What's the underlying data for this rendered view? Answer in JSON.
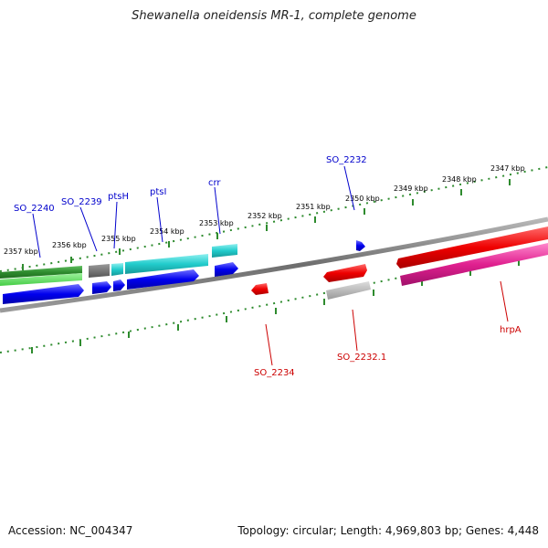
{
  "title": "Shewanella oneidensis MR-1, complete genome",
  "footer": {
    "accession": "Accession: NC_004347",
    "topology": "Topology: circular; Length: 4,969,803 bp; Genes: 4,448"
  },
  "scale_labels": [
    "2357 kbp",
    "2356 kbp",
    "2355 kbp",
    "2354 kbp",
    "2353 kbp",
    "2352 kbp",
    "2351 kbp",
    "2350 kbp",
    "2349 kbp",
    "2348 kbp",
    "2347 kbp"
  ],
  "genes_top": [
    "SO_2240",
    "SO_2239",
    "ptsH",
    "ptsI",
    "crr",
    "SO_2232"
  ],
  "genes_bottom": [
    "SO_2234",
    "SO_2232.1",
    "hrpA"
  ],
  "colors": {
    "forward_label": "#0000cc",
    "reverse_label": "#cc0000",
    "tick": "#228b22",
    "backbone": "#808080"
  }
}
